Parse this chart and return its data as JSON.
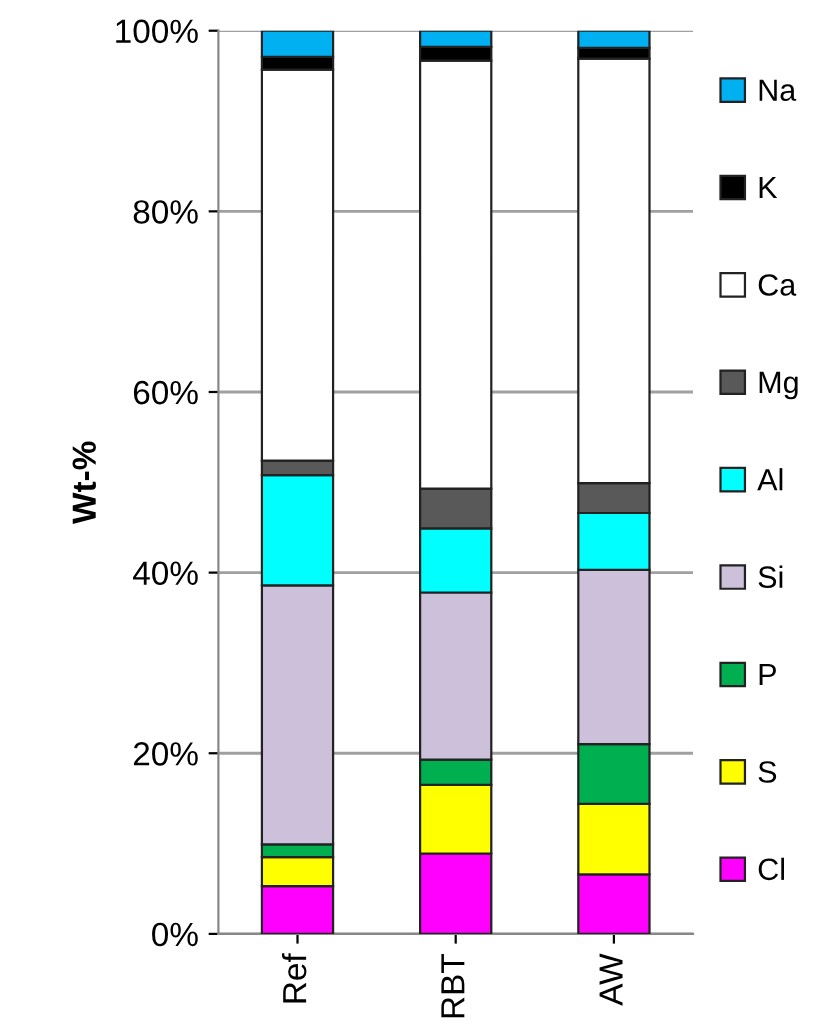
{
  "chart_data": {
    "type": "bar",
    "stacked": true,
    "ylabel": "Wt-%",
    "categories": [
      "Ref",
      "RBT",
      "AW"
    ],
    "series": [
      {
        "name": "Cl",
        "color": "#ff00ff",
        "values": [
          5.3,
          8.9,
          6.6
        ]
      },
      {
        "name": "S",
        "color": "#ffff00",
        "values": [
          3.2,
          7.6,
          7.8
        ]
      },
      {
        "name": "P",
        "color": "#00b050",
        "values": [
          1.4,
          2.8,
          6.6
        ]
      },
      {
        "name": "Si",
        "color": "#ccc0da",
        "values": [
          28.7,
          18.5,
          19.3
        ]
      },
      {
        "name": "Al",
        "color": "#00ffff",
        "values": [
          12.2,
          7.1,
          6.3
        ]
      },
      {
        "name": "Mg",
        "color": "#595959",
        "values": [
          1.6,
          4.4,
          3.3
        ]
      },
      {
        "name": "Ca",
        "color": "#ffffff",
        "values": [
          43.3,
          47.4,
          47.0
        ]
      },
      {
        "name": "K",
        "color": "#000000",
        "values": [
          1.4,
          1.5,
          1.2
        ]
      },
      {
        "name": "Na",
        "color": "#00b0f0",
        "values": [
          2.9,
          1.8,
          1.9
        ]
      }
    ],
    "ylim": [
      0,
      100
    ],
    "yticks": [
      {
        "value": 0,
        "label": "0%"
      },
      {
        "value": 20,
        "label": "20%"
      },
      {
        "value": 40,
        "label": "40%"
      },
      {
        "value": 60,
        "label": "60%"
      },
      {
        "value": 80,
        "label": "80%"
      },
      {
        "value": 100,
        "label": "100%"
      }
    ],
    "grid": "y",
    "legend": "right"
  }
}
